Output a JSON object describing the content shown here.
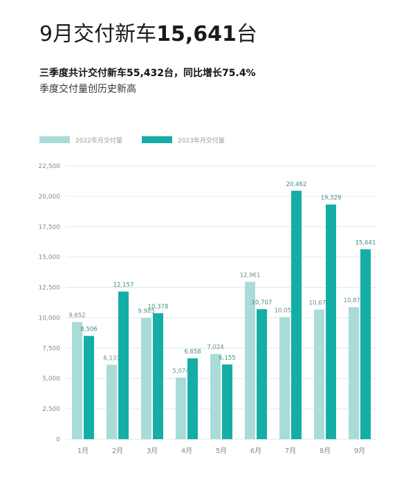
{
  "headline": {
    "prefix": "9月交付新车",
    "number": "15,641",
    "suffix": "台"
  },
  "subtitle": "三季度共计交付新车55,432台，同比增长75.4%",
  "subtitle2": "季度交付量创历史新高",
  "colors": {
    "series_2022": "#a9dcd8",
    "series_2023": "#14aea6",
    "grid": "#e6e6e6",
    "axis_text": "#888888",
    "label_2022": "#6f8f8d",
    "label_2023": "#3a8e89"
  },
  "chart_data": {
    "type": "bar",
    "title": "",
    "xlabel": "",
    "ylabel": "",
    "categories": [
      "1月",
      "2月",
      "3月",
      "4月",
      "5月",
      "6月",
      "7月",
      "8月",
      "9月"
    ],
    "series": [
      {
        "name": "2022年月交付量",
        "values": [
          9652,
          6131,
          9985,
          5074,
          7024,
          12961,
          10052,
          10677,
          10878
        ],
        "labels": [
          "9,652",
          "6,131",
          "9,985",
          "5,074",
          "7,024",
          "12,961",
          "10,052",
          "10,677",
          "10,878"
        ]
      },
      {
        "name": "2023年月交付量",
        "values": [
          8506,
          12157,
          10378,
          6658,
          6155,
          10707,
          20462,
          19329,
          15641
        ],
        "labels": [
          "8,506",
          "12,157",
          "10,378",
          "6,658",
          "6,155",
          "10,707",
          "20,462",
          "19,329",
          "15,641"
        ]
      }
    ],
    "ylim": [
      0,
      22500
    ],
    "yticks": [
      0,
      2500,
      5000,
      7500,
      10000,
      12500,
      15000,
      17500,
      20000,
      22500
    ],
    "ytick_labels": [
      "0",
      "2,500",
      "5,000",
      "7,500",
      "10,000",
      "12,500",
      "15,000",
      "17,500",
      "20,000",
      "22,500"
    ],
    "grid": true,
    "legend_position": "top-left"
  }
}
